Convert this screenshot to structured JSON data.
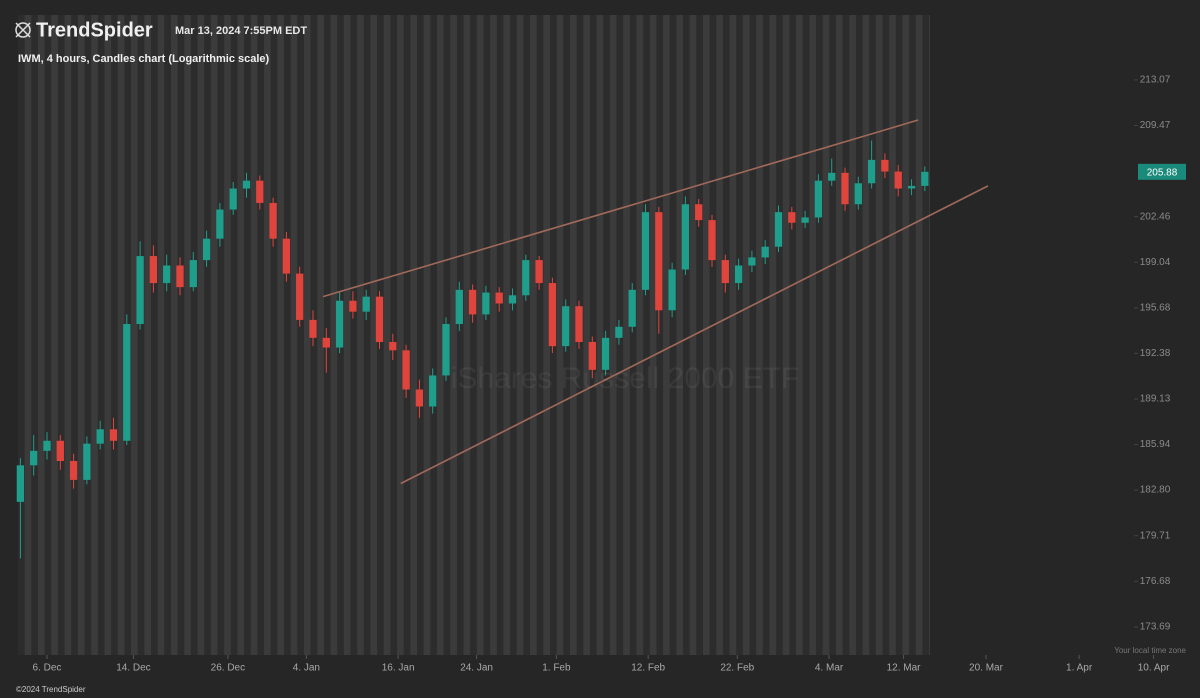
{
  "header": {
    "brand": "TrendSpider",
    "timestamp": "Mar 13, 2024 7:55PM EDT"
  },
  "footer": {
    "copyright": "©2024 TrendSpider",
    "timezone_note": "Your local time zone"
  },
  "chart_data": {
    "type": "candlestick",
    "title": "IWM, 4 hours, Candles chart (Logarithmic scale)",
    "watermark": "iShares Russell 2000 ETF",
    "log_scale": true,
    "up_color": "#1f9e8c",
    "down_color": "#e0453d",
    "x": [
      -2,
      -1,
      0,
      1,
      2,
      3,
      4,
      5,
      6,
      7,
      8,
      9,
      10,
      11,
      12,
      13,
      14,
      15,
      16,
      17,
      18,
      19,
      20,
      21,
      22,
      23,
      24,
      25,
      26,
      27,
      28,
      29,
      30,
      31,
      32,
      33,
      34,
      35,
      36,
      37,
      38,
      39,
      40,
      41,
      42,
      43,
      44,
      45,
      46,
      47,
      48,
      49,
      50,
      51,
      52,
      53,
      54,
      55,
      56,
      57,
      58,
      59,
      60,
      61,
      62,
      63,
      64,
      65,
      66
    ],
    "ohlc": [
      [
        182.0,
        185.0,
        178.2,
        184.5
      ],
      [
        184.5,
        186.6,
        183.8,
        185.5
      ],
      [
        185.5,
        186.8,
        184.9,
        186.2
      ],
      [
        186.2,
        186.6,
        184.2,
        184.8
      ],
      [
        184.8,
        185.3,
        182.9,
        183.5
      ],
      [
        183.5,
        186.5,
        183.2,
        186.0
      ],
      [
        186.0,
        187.6,
        185.6,
        187.0
      ],
      [
        187.0,
        187.8,
        185.6,
        186.2
      ],
      [
        186.2,
        195.2,
        185.9,
        194.5
      ],
      [
        194.5,
        200.6,
        194.1,
        199.5
      ],
      [
        199.5,
        200.3,
        196.8,
        197.5
      ],
      [
        197.5,
        199.6,
        196.9,
        198.8
      ],
      [
        198.8,
        199.4,
        196.6,
        197.2
      ],
      [
        197.2,
        199.8,
        196.9,
        199.2
      ],
      [
        199.2,
        201.4,
        198.7,
        200.8
      ],
      [
        200.8,
        203.5,
        200.2,
        203.0
      ],
      [
        203.0,
        205.1,
        202.6,
        204.6
      ],
      [
        204.6,
        205.8,
        203.9,
        205.2
      ],
      [
        205.2,
        205.6,
        203.0,
        203.5
      ],
      [
        203.5,
        203.9,
        200.2,
        200.8
      ],
      [
        200.8,
        201.3,
        197.6,
        198.2
      ],
      [
        198.2,
        198.7,
        194.3,
        194.8
      ],
      [
        194.8,
        195.5,
        192.9,
        193.5
      ],
      [
        193.5,
        194.2,
        191.0,
        192.8
      ],
      [
        192.8,
        196.8,
        192.4,
        196.2
      ],
      [
        196.2,
        196.9,
        194.9,
        195.4
      ],
      [
        195.4,
        197.0,
        194.8,
        196.5
      ],
      [
        196.5,
        196.9,
        192.7,
        193.2
      ],
      [
        193.2,
        193.8,
        191.9,
        192.6
      ],
      [
        192.6,
        193.0,
        189.2,
        189.8
      ],
      [
        189.8,
        190.5,
        187.8,
        188.6
      ],
      [
        188.6,
        191.3,
        188.1,
        190.8
      ],
      [
        190.8,
        195.0,
        190.4,
        194.5
      ],
      [
        194.5,
        197.6,
        194.0,
        197.0
      ],
      [
        197.0,
        197.4,
        194.6,
        195.2
      ],
      [
        195.2,
        197.3,
        194.8,
        196.8
      ],
      [
        196.8,
        197.2,
        195.4,
        196.0
      ],
      [
        196.0,
        197.1,
        195.5,
        196.6
      ],
      [
        196.6,
        199.6,
        196.2,
        199.2
      ],
      [
        199.2,
        199.5,
        197.0,
        197.5
      ],
      [
        197.5,
        197.9,
        192.4,
        192.9
      ],
      [
        192.9,
        196.3,
        192.5,
        195.8
      ],
      [
        195.8,
        196.2,
        192.7,
        193.2
      ],
      [
        193.2,
        193.6,
        190.6,
        191.2
      ],
      [
        191.2,
        194.0,
        190.8,
        193.5
      ],
      [
        193.5,
        194.8,
        193.0,
        194.3
      ],
      [
        194.3,
        197.5,
        193.9,
        197.0
      ],
      [
        197.0,
        203.4,
        196.6,
        202.8
      ],
      [
        202.8,
        203.2,
        193.8,
        195.5
      ],
      [
        195.5,
        199.0,
        195.0,
        198.5
      ],
      [
        198.5,
        204.0,
        198.1,
        203.4
      ],
      [
        203.4,
        203.8,
        201.7,
        202.2
      ],
      [
        202.2,
        202.6,
        198.7,
        199.2
      ],
      [
        199.2,
        199.6,
        196.8,
        197.5
      ],
      [
        197.5,
        199.3,
        197.0,
        198.8
      ],
      [
        198.8,
        199.9,
        198.3,
        199.4
      ],
      [
        199.4,
        200.7,
        198.9,
        200.2
      ],
      [
        200.2,
        203.3,
        199.8,
        202.8
      ],
      [
        202.8,
        203.2,
        201.5,
        202.0
      ],
      [
        202.0,
        202.9,
        201.6,
        202.4
      ],
      [
        202.4,
        205.7,
        202.0,
        205.2
      ],
      [
        205.2,
        206.9,
        204.8,
        205.8
      ],
      [
        205.8,
        206.2,
        202.9,
        203.4
      ],
      [
        203.4,
        205.5,
        203.0,
        205.0
      ],
      [
        205.0,
        208.3,
        204.6,
        206.8
      ],
      [
        206.8,
        207.3,
        205.4,
        205.9
      ],
      [
        205.9,
        206.4,
        204.0,
        204.6
      ],
      [
        204.6,
        205.3,
        204.1,
        204.8
      ],
      [
        204.8,
        206.3,
        204.4,
        205.88
      ]
    ],
    "trendlines": [
      {
        "color": "#a0695a",
        "x": [
          20.75,
          65.5
        ],
        "values": [
          196.5,
          209.9
        ]
      },
      {
        "color": "#a0695a",
        "x": [
          26.6,
          70.75
        ],
        "values": [
          183.25,
          204.8
        ]
      }
    ],
    "last_price": {
      "value": 205.88,
      "color": "#1a8a7a"
    },
    "xlim": [
      -2.18,
      86.69
    ],
    "xticks": [
      {
        "value": 0,
        "label": "6. Dec"
      },
      {
        "value": 6.5,
        "label": "14. Dec"
      },
      {
        "value": 13.6,
        "label": "26. Dec"
      },
      {
        "value": 19.5,
        "label": "4. Jan"
      },
      {
        "value": 26.4,
        "label": "16. Jan"
      },
      {
        "value": 32.3,
        "label": "24. Jan"
      },
      {
        "value": 38.3,
        "label": "1. Feb"
      },
      {
        "value": 45.2,
        "label": "12. Feb"
      },
      {
        "value": 51.9,
        "label": "22. Feb"
      },
      {
        "value": 58.8,
        "label": "4. Mar"
      },
      {
        "value": 64.4,
        "label": "12. Mar"
      },
      {
        "value": 70.6,
        "label": "20. Mar"
      },
      {
        "value": 77.6,
        "label": "1. Apr"
      },
      {
        "value": 83.2,
        "label": "10. Apr"
      }
    ],
    "ylim": [
      171.88,
      218.3
    ],
    "yticks": [
      {
        "value": 213.07,
        "label": "213.07"
      },
      {
        "value": 209.47,
        "label": "209.47"
      },
      {
        "value": 202.46,
        "label": "202.46"
      },
      {
        "value": 199.04,
        "label": "199.04"
      },
      {
        "value": 195.68,
        "label": "195.68"
      },
      {
        "value": 192.38,
        "label": "192.38"
      },
      {
        "value": 189.13,
        "label": "189.13"
      },
      {
        "value": 185.94,
        "label": "185.94"
      },
      {
        "value": 182.8,
        "label": "182.80"
      },
      {
        "value": 179.71,
        "label": "179.71"
      },
      {
        "value": 176.68,
        "label": "176.68"
      },
      {
        "value": 173.69,
        "label": "173.69"
      }
    ]
  }
}
